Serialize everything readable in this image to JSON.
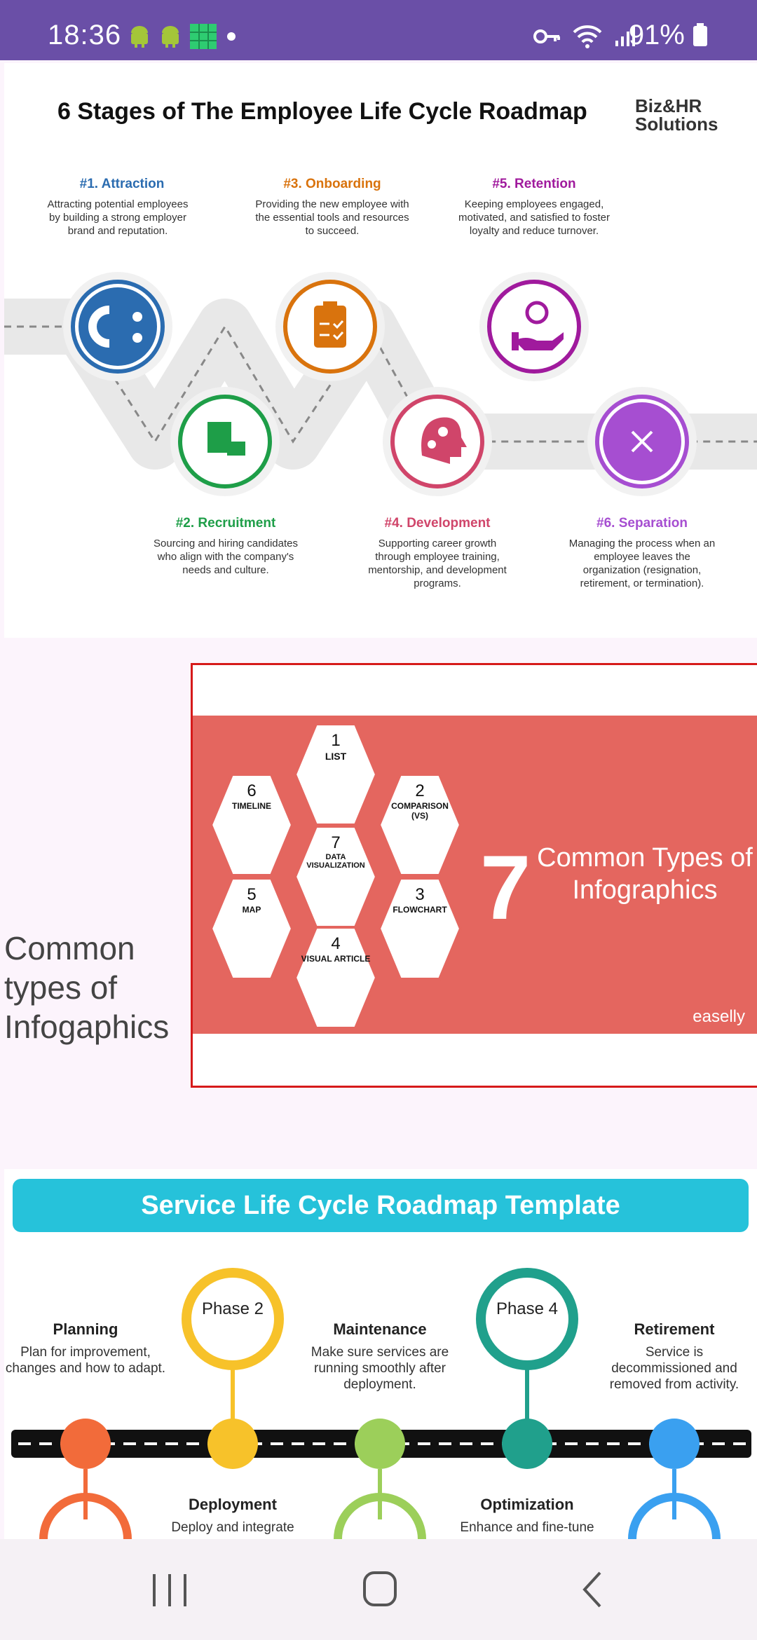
{
  "status_bar": {
    "time": "18:36",
    "battery": "91%"
  },
  "card1": {
    "title": "6 Stages of The Employee Life Cycle Roadmap",
    "brand_line1": "Biz&HR",
    "brand_line2": "Solutions",
    "stages": [
      {
        "title": "#1. Attraction",
        "desc": "Attracting potential employees by building a strong employer brand and reputation.",
        "color": "#2b6cb0"
      },
      {
        "title": "#2. Recruitment",
        "desc": "Sourcing and hiring candidates who align with the company's needs and culture.",
        "color": "#1e9e48"
      },
      {
        "title": "#3. Onboarding",
        "desc": "Providing the new employee with the essential tools and resources to succeed.",
        "color": "#d9730d"
      },
      {
        "title": "#4. Development",
        "desc": "Supporting career growth through employee training, mentorship, and development programs.",
        "color": "#d0456a"
      },
      {
        "title": "#5. Retention",
        "desc": "Keeping employees engaged, motivated, and satisfied to foster loyalty and reduce turnover.",
        "color": "#a01a9d"
      },
      {
        "title": "#6. Separation",
        "desc": "Managing the process when an employee leaves the organization (resignation, retirement, or termination).",
        "color": "#a64ed1"
      }
    ]
  },
  "section2": {
    "caption": "Common types of Infogaphics",
    "big_number": "7",
    "headline": "Common Types of Infographics",
    "watermark": "easelly",
    "hexes": [
      {
        "num": "1",
        "label": "LIST"
      },
      {
        "num": "2",
        "label": "COMPARISON (VS)"
      },
      {
        "num": "3",
        "label": "FLOWCHART"
      },
      {
        "num": "4",
        "label": "VISUAL ARTICLE"
      },
      {
        "num": "5",
        "label": "MAP"
      },
      {
        "num": "6",
        "label": "TIMELINE"
      },
      {
        "num": "7",
        "label": "DATA VISUALIZATION"
      }
    ]
  },
  "card3": {
    "banner": "Service Life Cycle Roadmap Template",
    "items": [
      {
        "title": "Planning",
        "desc": "Plan for improvement, changes and how to adapt.",
        "color": "#f26b3a"
      },
      {
        "title": "Phase 2",
        "color": "#f7c22a"
      },
      {
        "title": "Maintenance",
        "desc": "Make sure services are running smoothly after deployment.",
        "color": "#9ccf5a"
      },
      {
        "title": "Phase 4",
        "color": "#20a08c"
      },
      {
        "title": "Retirement",
        "desc": "Service is decommissioned and removed from activity.",
        "color": "#3aa0f0"
      }
    ],
    "bottom_items": [
      {
        "title": "Deployment",
        "desc": "Deploy and integrate"
      },
      {
        "title": "Optimization",
        "desc": "Enhance and fine-tune"
      }
    ]
  }
}
